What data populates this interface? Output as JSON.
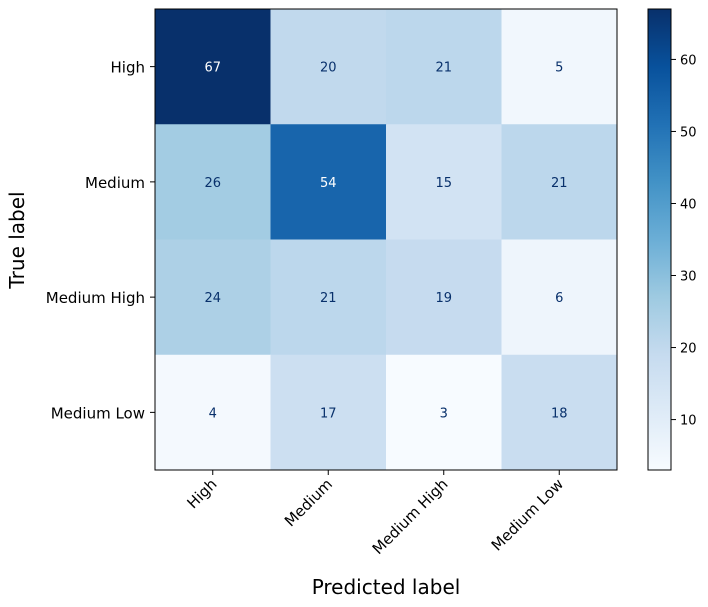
{
  "chart_data": {
    "type": "heatmap",
    "xlabel": "Predicted label",
    "ylabel": "True label",
    "x_categories": [
      "High",
      "Medium",
      "Medium High",
      "Medium Low"
    ],
    "y_categories": [
      "High",
      "Medium",
      "Medium High",
      "Medium Low"
    ],
    "values": [
      [
        67,
        20,
        21,
        5
      ],
      [
        26,
        54,
        15,
        21
      ],
      [
        24,
        21,
        19,
        6
      ],
      [
        4,
        17,
        3,
        18
      ]
    ],
    "colormap": "Blues",
    "value_range": [
      3,
      67
    ],
    "colorbar_ticks": [
      10,
      20,
      30,
      40,
      50,
      60
    ],
    "grid": false
  }
}
